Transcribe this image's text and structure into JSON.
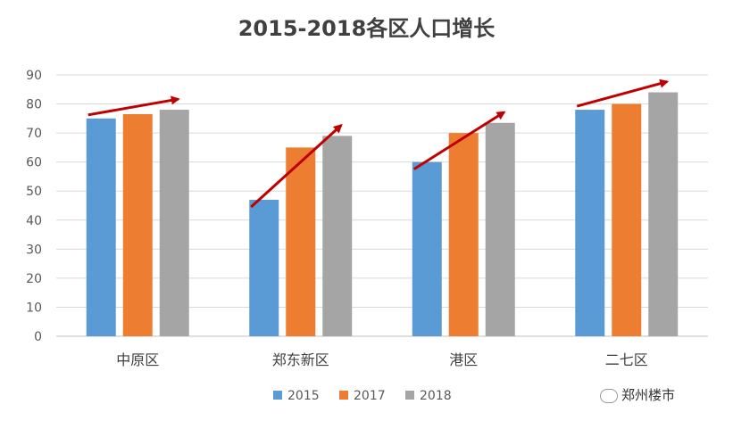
{
  "chart_data": {
    "type": "bar",
    "title": "2015-2018各区人口增长",
    "categories": [
      "中原区",
      "郑东新区",
      "港区",
      "二七区"
    ],
    "series": [
      {
        "name": "2015",
        "values": [
          75,
          47,
          60,
          78
        ],
        "color": "#5b9bd5"
      },
      {
        "name": "2017",
        "values": [
          76.5,
          65,
          70,
          80
        ],
        "color": "#ed7d31"
      },
      {
        "name": "2018",
        "values": [
          78,
          69,
          73.5,
          84
        ],
        "color": "#a5a5a5"
      }
    ],
    "ylim": [
      0,
      90
    ],
    "yticks": [
      0,
      10,
      20,
      30,
      40,
      50,
      60,
      70,
      80,
      90
    ],
    "grid": true,
    "legend_position": "bottom",
    "annotation": "red arrows indicating growth from 2015 to 2018",
    "arrow_color": "#c00000"
  },
  "watermark": "郑州楼市"
}
